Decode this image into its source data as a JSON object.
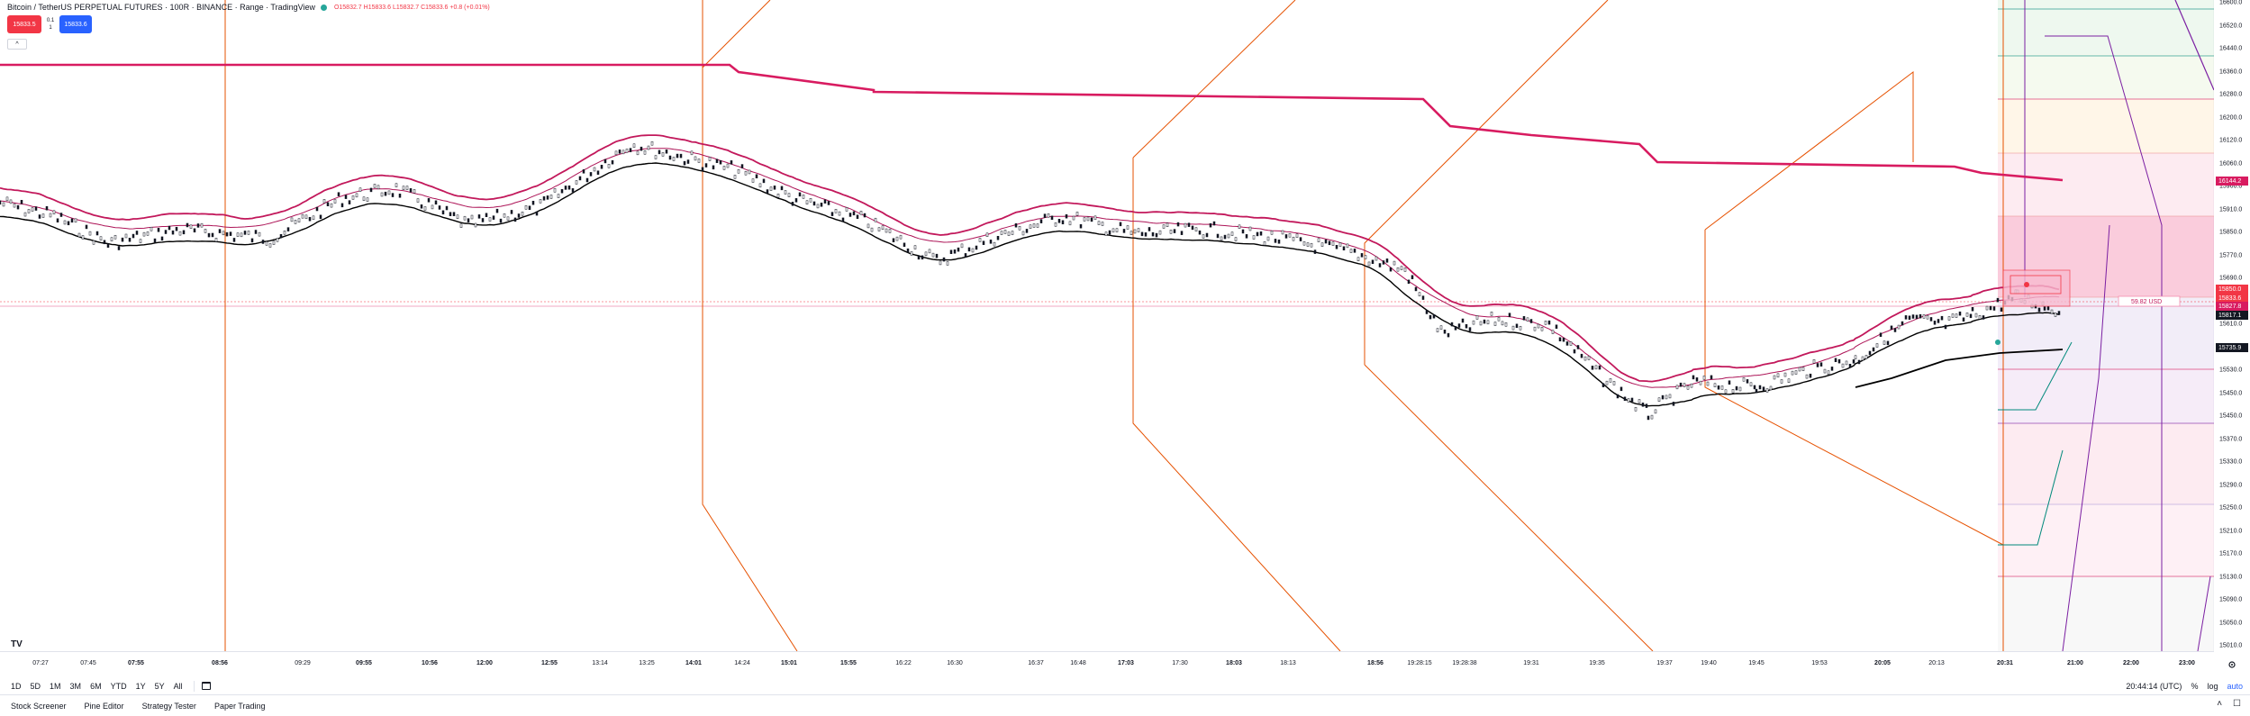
{
  "header": {
    "symbol": "Bitcoin / TetherUS PERPETUAL FUTURES · 100R · BINANCE · Range · TradingView",
    "ohlc": "O15832.7 H15833.6 L15832.7 C15833.6 +0.8 (+0.01%)",
    "status_color": "#26a69a"
  },
  "trade": {
    "sell_price": "15833.5",
    "spread_top": "0.1",
    "spread_bottom": "1",
    "buy_price": "15833.6"
  },
  "collapse_label": "^",
  "colors": {
    "bull": "#ffffff",
    "bear": "#131722",
    "crimson": "#d81b60",
    "pink": "#c2185b",
    "orange": "#e65100",
    "purple": "#7b1fa2",
    "teal": "#00897b",
    "ribbon_black": "#000000"
  },
  "price_axis": {
    "labels": [
      "16600.0",
      "16520.0",
      "16440.0",
      "16360.0",
      "16280.0",
      "16200.0",
      "16120.0",
      "16060.0",
      "15960.0",
      "15910.0",
      "15850.0",
      "15770.0",
      "15690.0",
      "15650.0",
      "15610.0",
      "15570.0",
      "15530.0",
      "15450.0",
      "15450.0",
      "15370.0",
      "15330.0",
      "15290.0",
      "15250.0",
      "15210.0",
      "15170.0",
      "15130.0",
      "15090.0",
      "15050.0",
      "15010.0"
    ],
    "tags": [
      {
        "text": "16144.2",
        "color": "#d81b60"
      },
      {
        "text": "15850.0",
        "color": "#f23645"
      },
      {
        "text": "15833.6",
        "color": "#f23645"
      },
      {
        "text": "15827.8",
        "color": "#d81b60"
      },
      {
        "text": "15817.1",
        "color": "#131722"
      },
      {
        "text": "15735.9",
        "color": "#131722"
      }
    ]
  },
  "measure_label": "59.82 USD",
  "time_axis": {
    "labels": [
      {
        "text": "07:27",
        "bold": false
      },
      {
        "text": "07:45",
        "bold": false
      },
      {
        "text": "07:55",
        "bold": true
      },
      {
        "text": "08:56",
        "bold": true
      },
      {
        "text": "09:29",
        "bold": false
      },
      {
        "text": "09:55",
        "bold": true
      },
      {
        "text": "10:56",
        "bold": true
      },
      {
        "text": "12:00",
        "bold": true
      },
      {
        "text": "12:55",
        "bold": true
      },
      {
        "text": "13:14",
        "bold": false
      },
      {
        "text": "13:25",
        "bold": false
      },
      {
        "text": "14:01",
        "bold": true
      },
      {
        "text": "14:24",
        "bold": false
      },
      {
        "text": "15:01",
        "bold": true
      },
      {
        "text": "15:55",
        "bold": true
      },
      {
        "text": "16:22",
        "bold": false
      },
      {
        "text": "16:30",
        "bold": false
      },
      {
        "text": "16:37",
        "bold": false
      },
      {
        "text": "16:48",
        "bold": false
      },
      {
        "text": "17:03",
        "bold": true
      },
      {
        "text": "17:30",
        "bold": false
      },
      {
        "text": "18:03",
        "bold": true
      },
      {
        "text": "18:13",
        "bold": false
      },
      {
        "text": "18:56",
        "bold": true
      },
      {
        "text": "19:28:15",
        "bold": false
      },
      {
        "text": "19:28:38",
        "bold": false
      },
      {
        "text": "19:31",
        "bold": false
      },
      {
        "text": "19:35",
        "bold": false
      },
      {
        "text": "19:37",
        "bold": false
      },
      {
        "text": "19:40",
        "bold": false
      },
      {
        "text": "19:45",
        "bold": false
      },
      {
        "text": "19:53",
        "bold": false
      },
      {
        "text": "20:05",
        "bold": true
      },
      {
        "text": "20:13",
        "bold": false
      },
      {
        "text": "20:31",
        "bold": true
      },
      {
        "text": "21:00",
        "bold": true
      },
      {
        "text": "22:00",
        "bold": true
      },
      {
        "text": "23:00",
        "bold": true
      }
    ]
  },
  "range_bar": {
    "ranges": [
      "1D",
      "5D",
      "1M",
      "3M",
      "6M",
      "YTD",
      "1Y",
      "5Y",
      "All"
    ],
    "clock": "20:44:14 (UTC)",
    "percent": "%",
    "log": "log",
    "auto": "auto"
  },
  "panel_tabs": [
    "Stock Screener",
    "Pine Editor",
    "Strategy Tester",
    "Paper Trading"
  ],
  "logo": "TV"
}
